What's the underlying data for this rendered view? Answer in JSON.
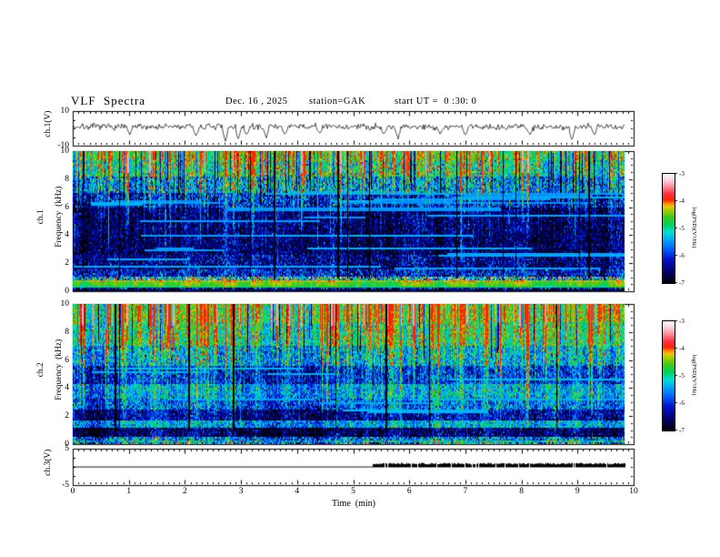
{
  "header": {
    "title": "VLF  Spectra",
    "date": "Dec. 16 , 2025",
    "station": "station=GAK",
    "start_ut": "start UT =  0 :30: 0"
  },
  "chart_data": {
    "type": "heatmap",
    "title": "VLF Spectra",
    "x_axis": {
      "label": "Time  (min)",
      "min": 0,
      "max": 10,
      "ticks": [
        0,
        1,
        2,
        3,
        4,
        5,
        6,
        7,
        8,
        9,
        10
      ],
      "minor_tick_step": 0.1,
      "data_end_min": 9.83
    },
    "colorbar": {
      "label": "log(PSD)(V²/Hz)",
      "min": -7,
      "max": -3,
      "ticks": [
        -3,
        -4,
        -5,
        -6,
        -7
      ],
      "colormap_stops": [
        [
          0,
          "#000000"
        ],
        [
          0.1,
          "#000066"
        ],
        [
          0.22,
          "#0011cc"
        ],
        [
          0.3,
          "#0055ff"
        ],
        [
          0.4,
          "#00aaff"
        ],
        [
          0.47,
          "#00e0d0"
        ],
        [
          0.53,
          "#00d060"
        ],
        [
          0.6,
          "#33cc22"
        ],
        [
          0.66,
          "#99cc00"
        ],
        [
          0.7,
          "#e0cc00"
        ],
        [
          0.73,
          "#ff8800"
        ],
        [
          0.76,
          "#ff2200"
        ],
        [
          0.82,
          "#ff3344"
        ],
        [
          0.88,
          "#ff8899"
        ],
        [
          0.94,
          "#ffccdd"
        ],
        [
          1,
          "#ffffff"
        ]
      ]
    },
    "panels": [
      {
        "id": "ch1_wave",
        "type": "line",
        "ylabel": "ch.1(V)",
        "ymin": -10,
        "ymax": 10,
        "yticks": [
          10,
          -10
        ],
        "yminor": [
          5,
          0,
          -5
        ],
        "signal": {
          "mean": 0.9,
          "noise_sigma": 0.9,
          "seed": 7,
          "spikes": [
            [
              1.02,
              -3.5
            ],
            [
              2.2,
              -4.5
            ],
            [
              2.72,
              -8
            ],
            [
              2.95,
              -6.5
            ],
            [
              3.1,
              -4
            ],
            [
              3.45,
              -5
            ],
            [
              3.78,
              -3.5
            ],
            [
              4.4,
              -3.2
            ],
            [
              5.55,
              -3.5
            ],
            [
              5.8,
              -6
            ],
            [
              6.55,
              -3.2
            ],
            [
              7.0,
              -4
            ],
            [
              8.15,
              -4
            ],
            [
              8.9,
              -7
            ],
            [
              9.3,
              -3.5
            ]
          ]
        }
      },
      {
        "id": "ch1_spec",
        "type": "heatmap",
        "ylabel_line1": "ch.1",
        "ylabel_line2": "Frequency  (kHz)",
        "ymin": 0,
        "ymax": 10,
        "yticks": [
          0,
          2,
          4,
          6,
          8,
          10
        ],
        "yminor_step": 0.5,
        "render": {
          "seed": 11,
          "col_mod": 0.35,
          "top_dots": true,
          "dropouts": 13,
          "bands": [
            [
              9.4,
              10.01,
              -4.75,
              0.3
            ],
            [
              8.2,
              9.4,
              -5.0,
              0.45
            ],
            [
              7.0,
              8.2,
              -5.55,
              0.55
            ],
            [
              6.0,
              7.0,
              -6.2,
              0.5
            ],
            [
              2.6,
              6.0,
              -6.6,
              0.38
            ],
            [
              1.6,
              2.6,
              -6.4,
              0.42
            ],
            [
              1.0,
              1.6,
              -6.15,
              0.5
            ],
            [
              0.78,
              1.0,
              -5.0,
              0.9
            ],
            [
              0.6,
              0.78,
              -4.3,
              0.18
            ],
            [
              0.45,
              0.6,
              -4.55,
              0.12
            ],
            [
              0.3,
              0.45,
              -4.85,
              0.18
            ],
            [
              0.08,
              0.3,
              -6.3,
              0.6
            ],
            [
              -0.01,
              0.08,
              -6.7,
              0.3
            ]
          ],
          "streaks": {
            "count": 230,
            "f_low": [
              2,
              8
            ],
            "strength": [
              0.5,
              1.2
            ]
          },
          "strong_streaks": {
            "count": 15,
            "f_low": [
              3,
              6
            ],
            "strength": [
              1.5,
              2.0
            ],
            "top_boost": 0.4
          },
          "dark_cols": {
            "count": 70,
            "f_low": [
              5.5,
              8
            ],
            "delta": -1.6
          },
          "h_lines": {
            "count": 26,
            "f": [
              1.2,
              7.2
            ],
            "v": -5.45
          }
        }
      },
      {
        "id": "ch2_spec",
        "type": "heatmap",
        "ylabel_line1": "ch.2",
        "ylabel_line2": "Frequency  (kHz)",
        "ymin": 0,
        "ymax": 10,
        "yticks": [
          0,
          2,
          4,
          6,
          8,
          10
        ],
        "yminor_step": 0.5,
        "render": {
          "seed": 23,
          "col_mod": 0.45,
          "top_dots": false,
          "dropouts": 8,
          "bands": [
            [
              8.7,
              10.01,
              -4.6,
              0.3
            ],
            [
              7.0,
              8.7,
              -4.9,
              0.35
            ],
            [
              5.6,
              7.0,
              -5.35,
              0.45
            ],
            [
              4.3,
              5.6,
              -5.95,
              0.45
            ],
            [
              3.2,
              4.3,
              -5.35,
              0.4
            ],
            [
              2.5,
              3.2,
              -5.65,
              0.45
            ],
            [
              1.7,
              2.5,
              -6.25,
              0.4
            ],
            [
              1.2,
              1.7,
              -5.3,
              0.4
            ],
            [
              0.5,
              1.2,
              -6.5,
              0.4
            ],
            [
              0.32,
              0.5,
              -5.5,
              0.6
            ],
            [
              0.18,
              0.32,
              -5.0,
              0.5
            ],
            [
              0.07,
              0.18,
              -6.5,
              0.4
            ],
            [
              -0.01,
              0.07,
              -5.3,
              0.9
            ]
          ],
          "streaks": {
            "count": 280,
            "f_low": [
              1,
              6.5
            ],
            "strength": [
              0.5,
              1.2
            ]
          },
          "strong_streaks": {
            "count": 28,
            "f_low": [
              5,
              8
            ],
            "strength": [
              1.4,
              1.9
            ],
            "top_boost": 0.6
          },
          "dark_cols": {
            "count": 45,
            "f_low": [
              6,
              8.5
            ],
            "delta": -1.5
          },
          "h_lines": {
            "count": 10,
            "f": [
              2,
              6.5
            ],
            "v": -5.4
          }
        }
      },
      {
        "id": "ch3_wave",
        "type": "line",
        "ylabel": "ch.3(V)",
        "ymin": -5,
        "ymax": 5,
        "yticks": [
          5,
          -5
        ],
        "yminor": [
          2.5,
          0,
          -2.5
        ],
        "signal": {
          "baseline": 0,
          "flat_until_min": 5.35,
          "burst_start_min": 5.35,
          "burst_end_min": 9.83,
          "burst_high": 1.0,
          "seed": 9
        }
      }
    ]
  }
}
